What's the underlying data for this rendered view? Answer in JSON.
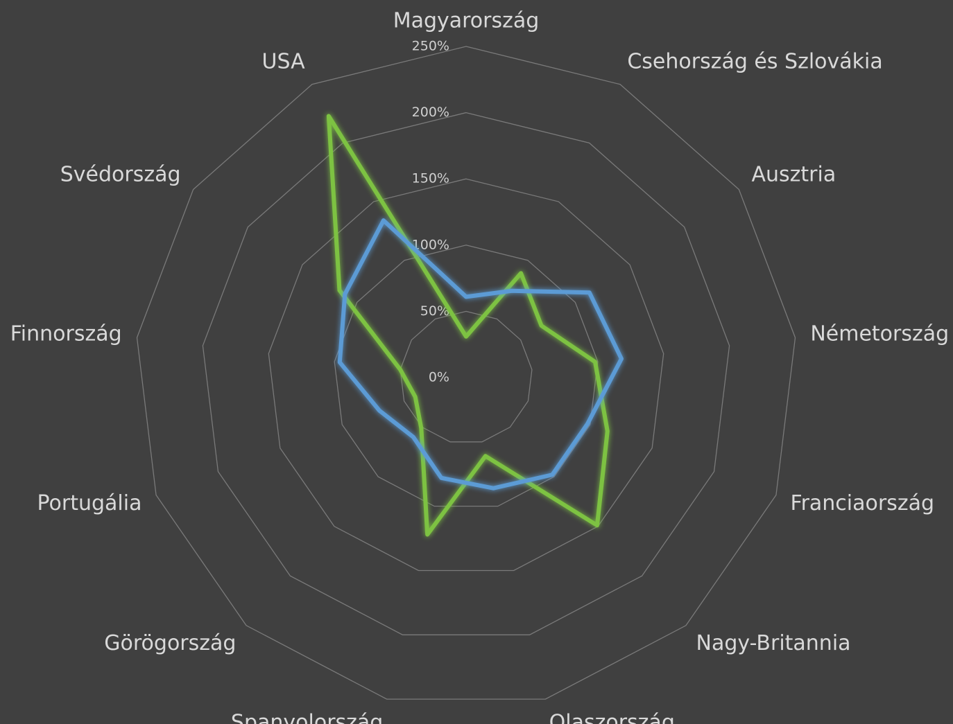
{
  "chart_data": {
    "type": "radar",
    "categories": [
      "Magyarország",
      "Csehország és Szlovákia",
      "Ausztria",
      "Németország",
      "Franciaország",
      "Nagy-Britannia",
      "Olaszország",
      "Spanyolország",
      "Görögország",
      "Portugália",
      "Finnország",
      "Svédország",
      "USA"
    ],
    "series": [
      {
        "color": "#7dc242",
        "values": [
          31,
          89,
          69,
          98,
          114,
          149,
          61,
          122,
          51,
          41,
          50,
          116,
          223
        ]
      },
      {
        "color": "#5b9bd5",
        "values": [
          61,
          74,
          113,
          118,
          98,
          98,
          86,
          78,
          60,
          70,
          96,
          111,
          134
        ]
      }
    ],
    "ylim": [
      0,
      250
    ],
    "yticks": [
      {
        "value": 0,
        "label": "0%"
      },
      {
        "value": 50,
        "label": "50%"
      },
      {
        "value": 100,
        "label": "100%"
      },
      {
        "value": 150,
        "label": "150%"
      },
      {
        "value": 200,
        "label": "200%"
      },
      {
        "value": 250,
        "label": "250%"
      }
    ],
    "grid": true
  }
}
